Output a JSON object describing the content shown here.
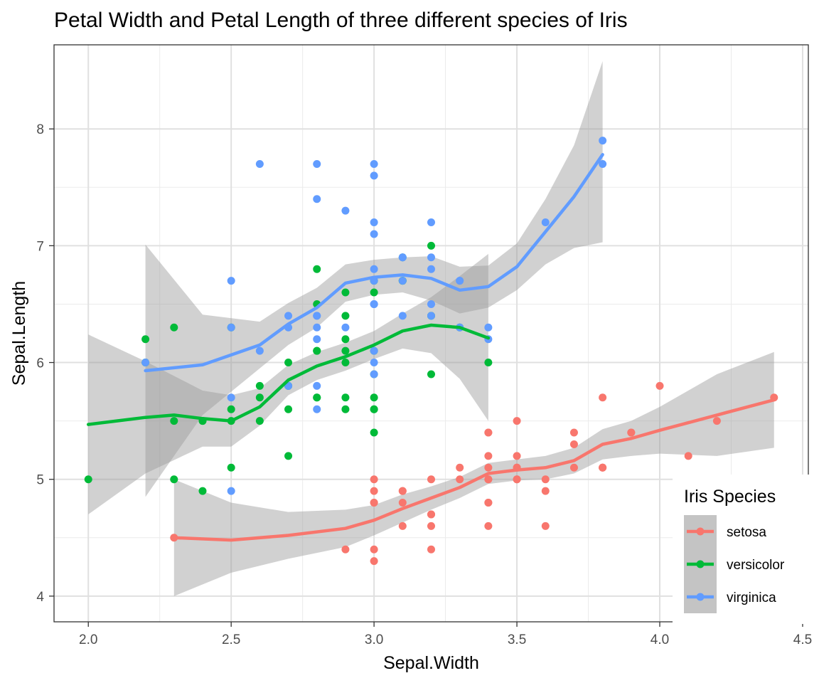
{
  "chart_data": {
    "type": "scatter",
    "title": "Petal Width and Petal Length of three different species of Iris",
    "xlabel": "Sepal.Width",
    "ylabel": "Sepal.Length",
    "xlim": [
      1.88,
      4.52
    ],
    "ylim": [
      3.78,
      8.72
    ],
    "x_ticks": [
      2.0,
      2.5,
      3.0,
      3.5,
      4.0,
      4.5
    ],
    "x_tick_labels": [
      "2.0",
      "2.5",
      "3.0",
      "3.5",
      "4.0",
      "4.5"
    ],
    "y_ticks": [
      4,
      5,
      6,
      7,
      8
    ],
    "y_tick_labels": [
      "4",
      "5",
      "6",
      "7",
      "8"
    ],
    "grid": true,
    "legend": {
      "title": "Iris Species",
      "position": "bottom-right"
    },
    "series": [
      {
        "name": "setosa",
        "color": "#F8766D",
        "points": [
          [
            3.5,
            5.1
          ],
          [
            3.0,
            4.9
          ],
          [
            3.2,
            4.7
          ],
          [
            3.1,
            4.6
          ],
          [
            3.6,
            5.0
          ],
          [
            3.9,
            5.4
          ],
          [
            3.4,
            4.6
          ],
          [
            3.4,
            5.0
          ],
          [
            2.9,
            4.4
          ],
          [
            3.1,
            4.9
          ],
          [
            3.7,
            5.4
          ],
          [
            3.4,
            4.8
          ],
          [
            3.0,
            4.8
          ],
          [
            3.0,
            4.3
          ],
          [
            4.0,
            5.8
          ],
          [
            4.4,
            5.7
          ],
          [
            3.9,
            5.4
          ],
          [
            3.5,
            5.1
          ],
          [
            3.8,
            5.7
          ],
          [
            3.8,
            5.1
          ],
          [
            3.4,
            5.4
          ],
          [
            3.7,
            5.1
          ],
          [
            3.6,
            4.6
          ],
          [
            3.3,
            5.1
          ],
          [
            3.4,
            4.8
          ],
          [
            3.0,
            5.0
          ],
          [
            3.4,
            5.0
          ],
          [
            3.5,
            5.2
          ],
          [
            3.4,
            5.2
          ],
          [
            3.2,
            4.7
          ],
          [
            3.1,
            4.8
          ],
          [
            3.4,
            5.4
          ],
          [
            4.1,
            5.2
          ],
          [
            4.2,
            5.5
          ],
          [
            3.1,
            4.9
          ],
          [
            3.2,
            5.0
          ],
          [
            3.5,
            5.5
          ],
          [
            3.6,
            4.9
          ],
          [
            3.0,
            4.4
          ],
          [
            3.4,
            5.1
          ],
          [
            3.5,
            5.0
          ],
          [
            2.3,
            4.5
          ],
          [
            3.2,
            4.4
          ],
          [
            3.5,
            5.0
          ],
          [
            3.8,
            5.1
          ],
          [
            3.0,
            4.8
          ],
          [
            3.8,
            5.1
          ],
          [
            3.2,
            4.6
          ],
          [
            3.7,
            5.3
          ],
          [
            3.3,
            5.0
          ]
        ],
        "smooth": [
          [
            2.3,
            4.5
          ],
          [
            2.5,
            4.48
          ],
          [
            2.7,
            4.52
          ],
          [
            2.9,
            4.58
          ],
          [
            3.0,
            4.65
          ],
          [
            3.1,
            4.75
          ],
          [
            3.2,
            4.84
          ],
          [
            3.3,
            4.93
          ],
          [
            3.4,
            5.05
          ],
          [
            3.5,
            5.08
          ],
          [
            3.6,
            5.1
          ],
          [
            3.7,
            5.16
          ],
          [
            3.8,
            5.3
          ],
          [
            3.9,
            5.35
          ],
          [
            4.0,
            5.42
          ],
          [
            4.2,
            5.55
          ],
          [
            4.4,
            5.68
          ]
        ],
        "band": [
          [
            2.3,
            4.0,
            5.0
          ],
          [
            2.5,
            4.2,
            4.8
          ],
          [
            2.7,
            4.32,
            4.72
          ],
          [
            2.9,
            4.42,
            4.74
          ],
          [
            3.0,
            4.52,
            4.78
          ],
          [
            3.1,
            4.63,
            4.87
          ],
          [
            3.2,
            4.74,
            4.94
          ],
          [
            3.3,
            4.84,
            5.02
          ],
          [
            3.4,
            4.96,
            5.14
          ],
          [
            3.5,
            4.99,
            5.17
          ],
          [
            3.6,
            5.0,
            5.2
          ],
          [
            3.7,
            5.05,
            5.27
          ],
          [
            3.8,
            5.17,
            5.43
          ],
          [
            3.9,
            5.2,
            5.5
          ],
          [
            4.0,
            5.22,
            5.62
          ],
          [
            4.2,
            5.2,
            5.9
          ],
          [
            4.4,
            5.27,
            6.09
          ]
        ]
      },
      {
        "name": "versicolor",
        "color": "#00BA38",
        "points": [
          [
            3.2,
            7.0
          ],
          [
            3.2,
            6.4
          ],
          [
            3.1,
            6.9
          ],
          [
            2.3,
            5.5
          ],
          [
            2.8,
            6.5
          ],
          [
            2.8,
            5.7
          ],
          [
            3.3,
            6.3
          ],
          [
            2.4,
            4.9
          ],
          [
            2.9,
            6.6
          ],
          [
            2.7,
            5.2
          ],
          [
            2.0,
            5.0
          ],
          [
            3.0,
            5.9
          ],
          [
            2.2,
            6.0
          ],
          [
            2.9,
            6.1
          ],
          [
            2.9,
            5.6
          ],
          [
            3.1,
            6.7
          ],
          [
            3.0,
            5.6
          ],
          [
            2.7,
            5.8
          ],
          [
            2.2,
            6.2
          ],
          [
            2.5,
            5.6
          ],
          [
            3.2,
            5.9
          ],
          [
            2.8,
            6.1
          ],
          [
            2.5,
            6.3
          ],
          [
            2.8,
            6.1
          ],
          [
            2.9,
            6.4
          ],
          [
            3.0,
            6.6
          ],
          [
            2.8,
            6.8
          ],
          [
            3.0,
            6.7
          ],
          [
            2.9,
            6.0
          ],
          [
            2.6,
            5.7
          ],
          [
            2.4,
            5.5
          ],
          [
            2.4,
            5.5
          ],
          [
            2.7,
            5.8
          ],
          [
            2.7,
            6.0
          ],
          [
            3.0,
            5.4
          ],
          [
            3.4,
            6.0
          ],
          [
            3.1,
            6.7
          ],
          [
            2.3,
            6.3
          ],
          [
            3.0,
            5.6
          ],
          [
            2.5,
            5.5
          ],
          [
            2.6,
            5.5
          ],
          [
            3.0,
            6.1
          ],
          [
            2.6,
            5.8
          ],
          [
            2.3,
            5.0
          ],
          [
            2.7,
            5.6
          ],
          [
            3.0,
            5.7
          ],
          [
            2.9,
            5.7
          ],
          [
            2.9,
            6.2
          ],
          [
            2.5,
            5.1
          ],
          [
            2.8,
            5.7
          ]
        ],
        "smooth": [
          [
            2.0,
            5.47
          ],
          [
            2.1,
            5.5
          ],
          [
            2.2,
            5.53
          ],
          [
            2.3,
            5.55
          ],
          [
            2.4,
            5.52
          ],
          [
            2.5,
            5.5
          ],
          [
            2.6,
            5.62
          ],
          [
            2.7,
            5.85
          ],
          [
            2.8,
            5.97
          ],
          [
            2.9,
            6.05
          ],
          [
            3.0,
            6.15
          ],
          [
            3.1,
            6.27
          ],
          [
            3.2,
            6.32
          ],
          [
            3.3,
            6.3
          ],
          [
            3.4,
            6.21
          ]
        ],
        "band": [
          [
            2.0,
            4.7,
            6.24
          ],
          [
            2.2,
            5.05,
            6.01
          ],
          [
            2.4,
            5.28,
            5.76
          ],
          [
            2.5,
            5.28,
            5.72
          ],
          [
            2.6,
            5.46,
            5.78
          ],
          [
            2.7,
            5.72,
            5.98
          ],
          [
            2.8,
            5.85,
            6.09
          ],
          [
            2.9,
            5.93,
            6.17
          ],
          [
            3.0,
            6.03,
            6.27
          ],
          [
            3.1,
            6.12,
            6.42
          ],
          [
            3.2,
            6.08,
            6.56
          ],
          [
            3.3,
            5.86,
            6.74
          ],
          [
            3.4,
            5.5,
            6.93
          ]
        ]
      },
      {
        "name": "virginica",
        "color": "#619CFF",
        "points": [
          [
            3.3,
            6.3
          ],
          [
            2.7,
            5.8
          ],
          [
            3.0,
            7.1
          ],
          [
            2.9,
            6.3
          ],
          [
            3.0,
            6.5
          ],
          [
            3.0,
            7.6
          ],
          [
            2.5,
            4.9
          ],
          [
            2.9,
            7.3
          ],
          [
            2.5,
            6.7
          ],
          [
            3.6,
            7.2
          ],
          [
            3.2,
            6.5
          ],
          [
            2.7,
            6.4
          ],
          [
            3.0,
            6.8
          ],
          [
            2.5,
            5.7
          ],
          [
            2.8,
            5.8
          ],
          [
            3.2,
            6.4
          ],
          [
            3.0,
            6.5
          ],
          [
            3.8,
            7.7
          ],
          [
            2.6,
            7.7
          ],
          [
            2.2,
            6.0
          ],
          [
            3.2,
            6.9
          ],
          [
            2.8,
            5.6
          ],
          [
            2.8,
            7.7
          ],
          [
            2.7,
            6.3
          ],
          [
            3.3,
            6.7
          ],
          [
            3.2,
            7.2
          ],
          [
            2.8,
            6.2
          ],
          [
            3.0,
            6.1
          ],
          [
            2.8,
            6.4
          ],
          [
            3.0,
            7.2
          ],
          [
            2.8,
            7.4
          ],
          [
            3.8,
            7.9
          ],
          [
            2.8,
            6.4
          ],
          [
            2.8,
            6.3
          ],
          [
            2.6,
            6.1
          ],
          [
            3.0,
            7.7
          ],
          [
            3.4,
            6.3
          ],
          [
            3.1,
            6.4
          ],
          [
            3.0,
            6.0
          ],
          [
            3.1,
            6.9
          ],
          [
            3.1,
            6.7
          ],
          [
            3.1,
            6.9
          ],
          [
            2.7,
            5.8
          ],
          [
            3.2,
            6.8
          ],
          [
            3.3,
            6.7
          ],
          [
            3.0,
            6.7
          ],
          [
            2.5,
            6.3
          ],
          [
            3.0,
            6.5
          ],
          [
            3.4,
            6.2
          ],
          [
            3.0,
            5.9
          ]
        ],
        "smooth": [
          [
            2.2,
            5.93
          ],
          [
            2.4,
            5.98
          ],
          [
            2.6,
            6.15
          ],
          [
            2.7,
            6.33
          ],
          [
            2.8,
            6.47
          ],
          [
            2.9,
            6.68
          ],
          [
            3.0,
            6.73
          ],
          [
            3.1,
            6.75
          ],
          [
            3.2,
            6.72
          ],
          [
            3.3,
            6.62
          ],
          [
            3.4,
            6.65
          ],
          [
            3.5,
            6.82
          ],
          [
            3.6,
            7.12
          ],
          [
            3.7,
            7.42
          ],
          [
            3.8,
            7.78
          ]
        ],
        "band": [
          [
            2.2,
            4.85,
            7.01
          ],
          [
            2.4,
            5.55,
            6.41
          ],
          [
            2.6,
            5.95,
            6.35
          ],
          [
            2.7,
            6.15,
            6.51
          ],
          [
            2.8,
            6.3,
            6.64
          ],
          [
            2.9,
            6.52,
            6.84
          ],
          [
            3.0,
            6.58,
            6.88
          ],
          [
            3.1,
            6.6,
            6.9
          ],
          [
            3.2,
            6.53,
            6.91
          ],
          [
            3.3,
            6.42,
            6.82
          ],
          [
            3.4,
            6.47,
            6.83
          ],
          [
            3.5,
            6.62,
            7.02
          ],
          [
            3.6,
            6.84,
            7.4
          ],
          [
            3.7,
            6.98,
            7.86
          ],
          [
            3.8,
            7.03,
            8.58
          ]
        ]
      }
    ]
  }
}
